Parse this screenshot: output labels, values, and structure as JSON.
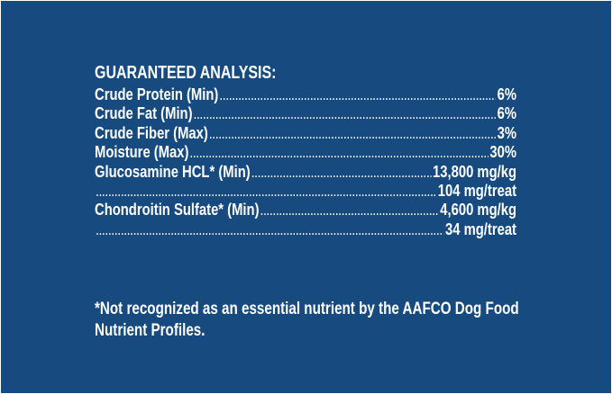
{
  "title": "GUARANTEED ANALYSIS:",
  "rows": [
    {
      "label": "Crude Protein (Min)",
      "value": "6%"
    },
    {
      "label": "Crude Fat (Min)",
      "value": "6%"
    },
    {
      "label": "Crude Fiber (Max)",
      "value": "3%"
    },
    {
      "label": "Moisture (Max)",
      "value": "30%"
    },
    {
      "label": "Glucosamine HCL* (Min)",
      "value": "13,800 mg/kg"
    },
    {
      "label": "",
      "value": "104 mg/treat"
    },
    {
      "label": "Chondroitin Sulfate* (Min)",
      "value": "4,600 mg/kg"
    },
    {
      "label": "",
      "value": "34 mg/treat"
    }
  ],
  "footnote": "*Not recognized as an essential nutrient by the AAFCO Dog Food Nutrient Profiles.",
  "colors": {
    "background": "#174b80",
    "text": "#ffffff"
  }
}
